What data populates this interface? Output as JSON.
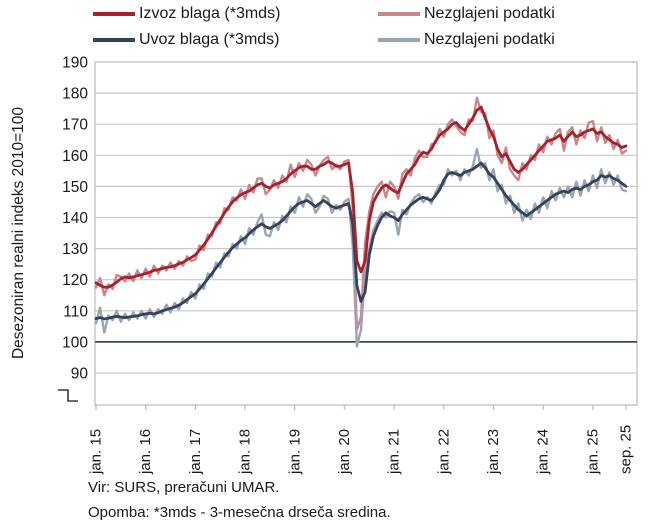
{
  "legend": {
    "items": [
      {
        "label": "Izvoz blaga (*3mds)",
        "color": "#A5212B"
      },
      {
        "label": "Nezglajeni podatki",
        "color": "#CC858C"
      },
      {
        "label": "Uvoz blaga (*3mds)",
        "color": "#36425A"
      },
      {
        "label": "Nezglajeni podatki",
        "color": "#9CA4B1"
      }
    ]
  },
  "y_axis": {
    "title": "Desezoniran realni indeks 2010=100",
    "ticks": [
      190,
      180,
      170,
      160,
      150,
      140,
      130,
      120,
      110,
      100,
      90
    ]
  },
  "x_axis": {
    "tick_labels": [
      "jan. 15",
      "jan. 16",
      "jan. 17",
      "jan. 18",
      "jan. 19",
      "jan. 20",
      "jan. 21",
      "jan. 22",
      "jan. 23",
      "jan. 24",
      "jan. 25",
      "sep. 25"
    ],
    "tick_months": [
      0,
      12,
      24,
      36,
      48,
      60,
      72,
      84,
      96,
      108,
      120,
      128
    ]
  },
  "footer": {
    "source": "Vir: SURS, preračuni UMAR.",
    "note": "Opomba: *3mds - 3-mesečna drseča sredina."
  },
  "colors": {
    "grid": "#C9C9C9",
    "border": "#BFBFBF",
    "reference_line": "#3E4A60",
    "axis_break": "#3A3A3A"
  },
  "chart_data": {
    "type": "line",
    "x_unit": "monthly, jan. 2015 – sep. 2025 (129 points)",
    "n_points": 129,
    "ylim": [
      90,
      190
    ],
    "reference_line": 100,
    "grid": true,
    "legend_position": "top",
    "series": [
      {
        "name": "Izvoz blaga (*3mds)",
        "color": "#A5212B",
        "width": 2.8,
        "values": [
          119.0,
          118.2,
          117.6,
          117.6,
          118.3,
          119.2,
          120.3,
          120.9,
          120.6,
          120.9,
          121.3,
          121.6,
          122.0,
          122.4,
          123.0,
          123.2,
          123.6,
          124.0,
          124.1,
          124.5,
          125.1,
          125.6,
          126.4,
          127.1,
          128.0,
          129.5,
          131.2,
          133.0,
          135.0,
          137.2,
          139.3,
          141.4,
          143.3,
          145.0,
          146.3,
          147.3,
          148.0,
          148.5,
          149.5,
          150.5,
          151.0,
          150.0,
          149.5,
          150.5,
          151.0,
          151.5,
          152.5,
          154.0,
          155.0,
          156.0,
          156.5,
          156.5,
          155.5,
          155.5,
          156.5,
          157.0,
          158.0,
          157.5,
          156.5,
          156.5,
          157.0,
          157.5,
          148.0,
          126.0,
          122.5,
          126.0,
          139.0,
          145.0,
          147.5,
          149.5,
          150.5,
          149.5,
          148.5,
          148.0,
          151.0,
          154.0,
          155.5,
          157.0,
          159.5,
          161.0,
          160.5,
          162.0,
          164.5,
          166.5,
          167.5,
          168.5,
          170.0,
          170.5,
          169.0,
          168.0,
          170.0,
          172.0,
          174.5,
          175.5,
          172.0,
          168.5,
          166.0,
          162.0,
          159.5,
          160.5,
          158.0,
          155.5,
          154.5,
          155.5,
          157.0,
          158.5,
          160.0,
          161.5,
          163.0,
          164.5,
          165.0,
          165.5,
          166.5,
          164.5,
          166.0,
          167.5,
          166.0,
          166.5,
          167.5,
          168.0,
          168.5,
          167.0,
          167.5,
          166.0,
          165.0,
          164.0,
          163.5,
          162.5,
          163.0
        ]
      },
      {
        "name": "Nezglajeni podatki (izvoz)",
        "color": "#CC858C",
        "width": 2.4,
        "values": [
          117.5,
          120.5,
          115.0,
          118.5,
          117.0,
          121.5,
          121.0,
          119.5,
          122.0,
          119.5,
          123.0,
          120.5,
          123.5,
          121.0,
          124.5,
          122.0,
          124.5,
          123.0,
          125.5,
          123.5,
          126.0,
          124.5,
          127.5,
          126.0,
          126.5,
          131.0,
          129.5,
          134.5,
          134.0,
          138.5,
          138.0,
          143.0,
          142.5,
          146.5,
          145.5,
          149.0,
          146.0,
          150.5,
          148.0,
          152.5,
          152.5,
          147.5,
          149.0,
          152.0,
          149.5,
          153.5,
          151.5,
          157.0,
          153.0,
          157.5,
          155.0,
          158.5,
          157.0,
          153.5,
          156.5,
          158.5,
          159.5,
          155.5,
          157.0,
          155.5,
          158.0,
          158.5,
          143.0,
          104.0,
          108.0,
          132.0,
          142.0,
          147.5,
          150.0,
          151.5,
          146.5,
          151.5,
          150.0,
          146.0,
          154.0,
          155.5,
          153.5,
          159.0,
          161.5,
          159.5,
          159.5,
          163.5,
          164.0,
          168.5,
          166.0,
          170.0,
          171.5,
          169.5,
          167.5,
          166.5,
          171.5,
          171.0,
          178.5,
          174.0,
          173.5,
          165.5,
          168.0,
          160.0,
          157.5,
          162.5,
          155.5,
          153.5,
          152.0,
          157.5,
          155.5,
          160.0,
          158.5,
          163.5,
          161.0,
          166.0,
          163.5,
          167.0,
          168.5,
          161.5,
          167.5,
          169.0,
          163.5,
          168.0,
          165.5,
          170.5,
          171.0,
          164.5,
          169.0,
          164.0,
          166.5,
          162.0,
          165.0,
          160.5,
          161.5
        ]
      },
      {
        "name": "Uvoz blaga (*3mds)",
        "color": "#36425A",
        "width": 2.8,
        "values": [
          107.5,
          107.8,
          107.4,
          107.6,
          108.0,
          108.2,
          108.0,
          107.8,
          108.0,
          108.2,
          108.4,
          108.7,
          109.0,
          109.2,
          109.0,
          109.4,
          110.0,
          110.4,
          110.8,
          111.2,
          111.8,
          112.6,
          113.6,
          114.6,
          115.5,
          117.0,
          118.6,
          120.3,
          122.0,
          123.8,
          125.5,
          127.2,
          128.8,
          130.3,
          131.5,
          132.6,
          133.5,
          134.8,
          136.0,
          137.0,
          138.0,
          137.0,
          136.5,
          137.2,
          138.0,
          139.0,
          140.5,
          142.0,
          143.5,
          144.5,
          145.0,
          145.5,
          144.5,
          143.5,
          144.5,
          145.5,
          144.5,
          143.5,
          143.0,
          143.5,
          144.0,
          144.5,
          138.0,
          118.0,
          113.0,
          116.0,
          128.0,
          134.0,
          137.5,
          140.0,
          141.5,
          140.5,
          140.0,
          139.0,
          141.0,
          142.5,
          144.0,
          145.0,
          146.0,
          146.5,
          146.0,
          145.5,
          147.0,
          149.0,
          152.0,
          154.0,
          154.5,
          154.0,
          153.5,
          154.5,
          155.0,
          155.5,
          156.5,
          157.5,
          156.0,
          154.0,
          153.0,
          151.0,
          149.0,
          147.0,
          145.5,
          144.0,
          142.5,
          141.5,
          140.5,
          141.5,
          142.5,
          143.5,
          144.5,
          145.5,
          146.5,
          147.5,
          148.0,
          148.5,
          148.0,
          149.0,
          149.5,
          149.0,
          150.0,
          150.5,
          151.5,
          152.0,
          153.5,
          153.0,
          153.5,
          152.5,
          152.0,
          151.0,
          150.0
        ]
      },
      {
        "name": "Nezglajeni podatki (uvoz)",
        "color": "#9CA4B1",
        "width": 2.4,
        "values": [
          106.0,
          111.0,
          103.0,
          108.5,
          107.0,
          110.0,
          106.5,
          109.0,
          107.0,
          109.5,
          107.5,
          110.0,
          107.5,
          110.5,
          108.0,
          110.5,
          109.0,
          112.0,
          109.5,
          112.5,
          110.5,
          114.0,
          112.5,
          116.0,
          114.0,
          118.5,
          117.0,
          122.0,
          121.0,
          125.5,
          124.0,
          128.5,
          127.5,
          131.5,
          130.0,
          134.0,
          131.5,
          136.5,
          134.5,
          138.5,
          141.0,
          134.5,
          134.0,
          138.5,
          136.0,
          140.5,
          138.5,
          143.5,
          141.5,
          146.5,
          143.5,
          147.5,
          146.0,
          141.5,
          143.5,
          147.0,
          146.0,
          141.5,
          144.0,
          142.5,
          145.0,
          146.0,
          131.0,
          98.5,
          104.0,
          122.0,
          130.0,
          136.0,
          139.0,
          141.5,
          140.0,
          142.0,
          141.5,
          134.5,
          142.5,
          141.0,
          144.5,
          146.5,
          147.5,
          145.0,
          146.5,
          144.5,
          148.0,
          150.5,
          150.5,
          155.5,
          153.5,
          155.0,
          152.0,
          155.5,
          153.5,
          156.5,
          162.0,
          156.0,
          157.5,
          152.0,
          155.5,
          148.5,
          150.5,
          144.5,
          147.0,
          141.5,
          144.5,
          139.0,
          142.5,
          139.5,
          144.5,
          141.5,
          146.5,
          143.0,
          148.5,
          145.5,
          149.5,
          146.5,
          150.0,
          146.5,
          151.5,
          147.0,
          152.0,
          148.5,
          153.5,
          149.5,
          155.5,
          151.0,
          154.5,
          150.5,
          153.5,
          149.0,
          148.5
        ]
      }
    ]
  }
}
